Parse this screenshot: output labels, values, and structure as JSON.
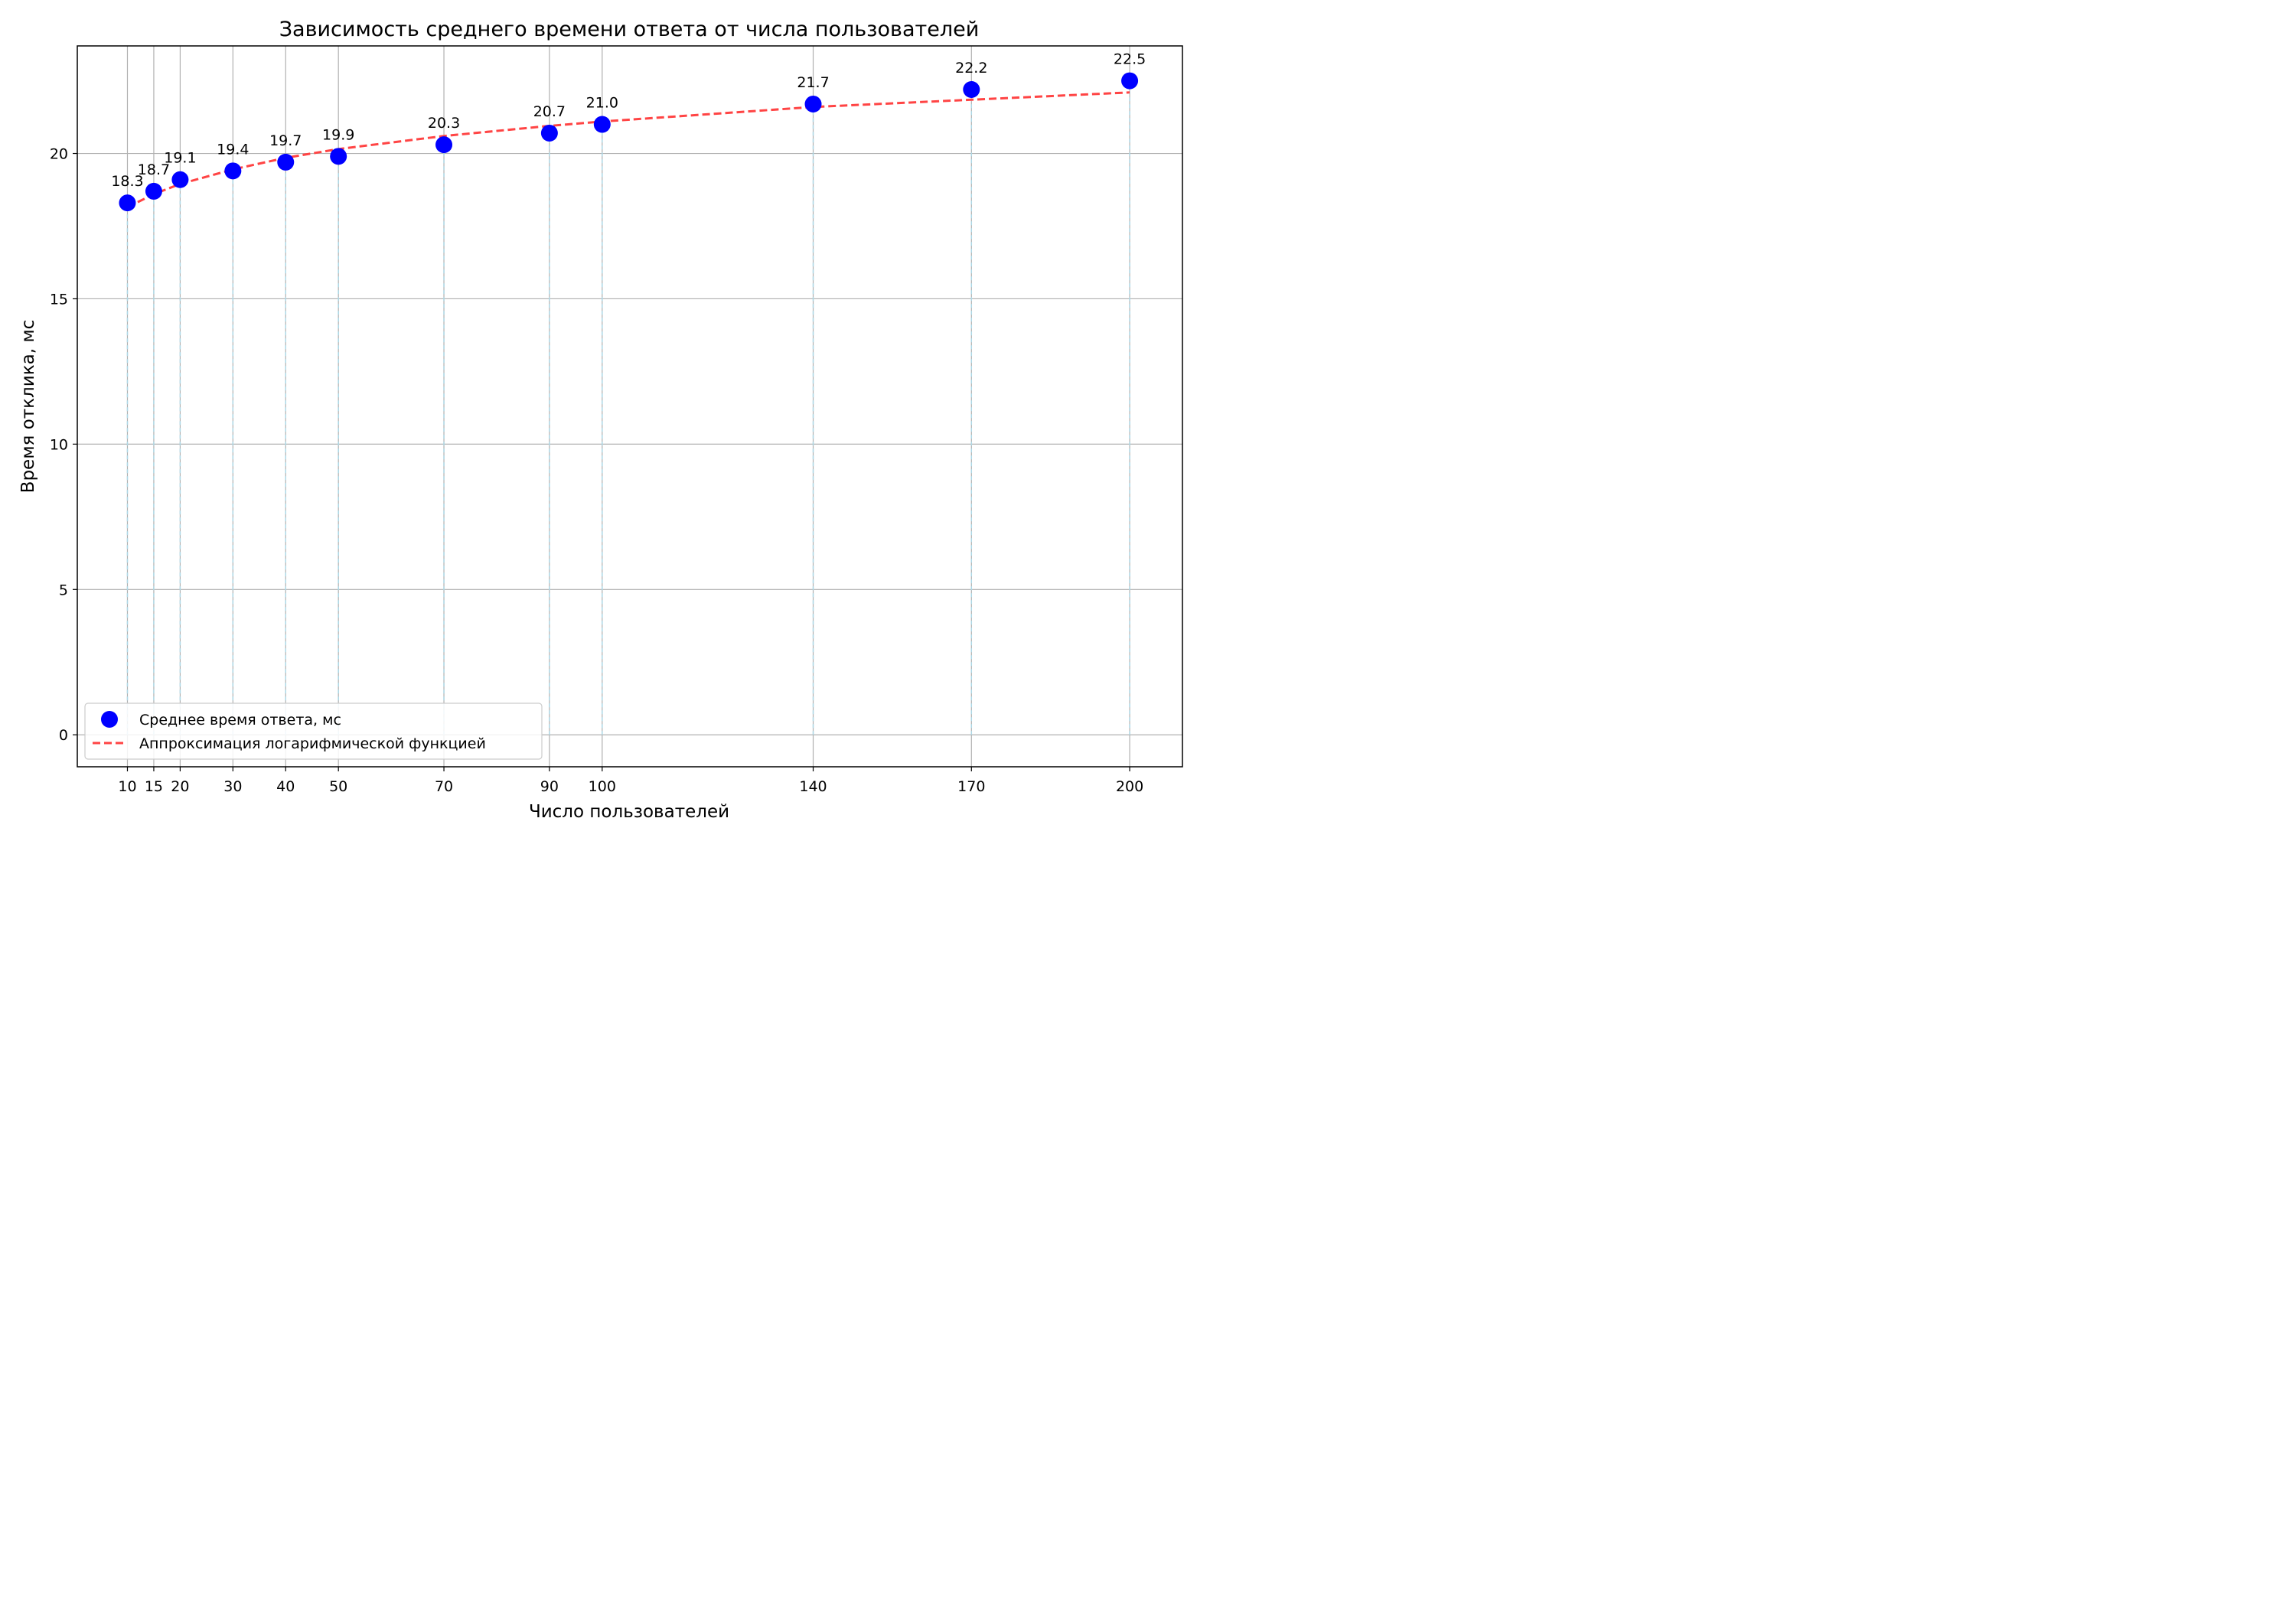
{
  "chart_data": {
    "type": "scatter",
    "title": "Зависимость среднего времени ответа от числа пользователей",
    "xlabel": "Число пользователей",
    "ylabel": "Время отклика, мс",
    "x": [
      10,
      15,
      20,
      30,
      40,
      50,
      70,
      90,
      100,
      140,
      170,
      200
    ],
    "x_tick_labels": [
      "10",
      "15",
      "20",
      "30",
      "40",
      "50",
      "70",
      "90",
      "100",
      "140",
      "170",
      "200"
    ],
    "y_ticks": [
      0,
      5,
      10,
      15,
      20
    ],
    "y_tick_labels": [
      "0",
      "5",
      "10",
      "15",
      "20"
    ],
    "xlim": [
      0.5,
      210
    ],
    "ylim": [
      -1.1,
      23.7
    ],
    "grid": true,
    "legend_position": "lower-left",
    "series": [
      {
        "name": "Среднее время ответа, мс",
        "kind": "scatter",
        "color": "#0000ff",
        "values": [
          18.3,
          18.7,
          19.1,
          19.4,
          19.7,
          19.9,
          20.3,
          20.7,
          21.0,
          21.7,
          22.2,
          22.5
        ],
        "data_labels": [
          "18.3",
          "18.7",
          "19.1",
          "19.4",
          "19.7",
          "19.9",
          "20.3",
          "20.7",
          "21.0",
          "21.7",
          "22.2",
          "22.5"
        ]
      },
      {
        "name": "Аппроксимация логарифмической функцией",
        "kind": "line",
        "style": "dashed",
        "color": "#ff4444",
        "values": [
          18.15,
          18.6,
          18.95,
          19.45,
          19.85,
          20.15,
          20.6,
          20.95,
          21.1,
          21.6,
          21.85,
          22.1
        ]
      }
    ],
    "drop_line_color": "#add8e6"
  }
}
